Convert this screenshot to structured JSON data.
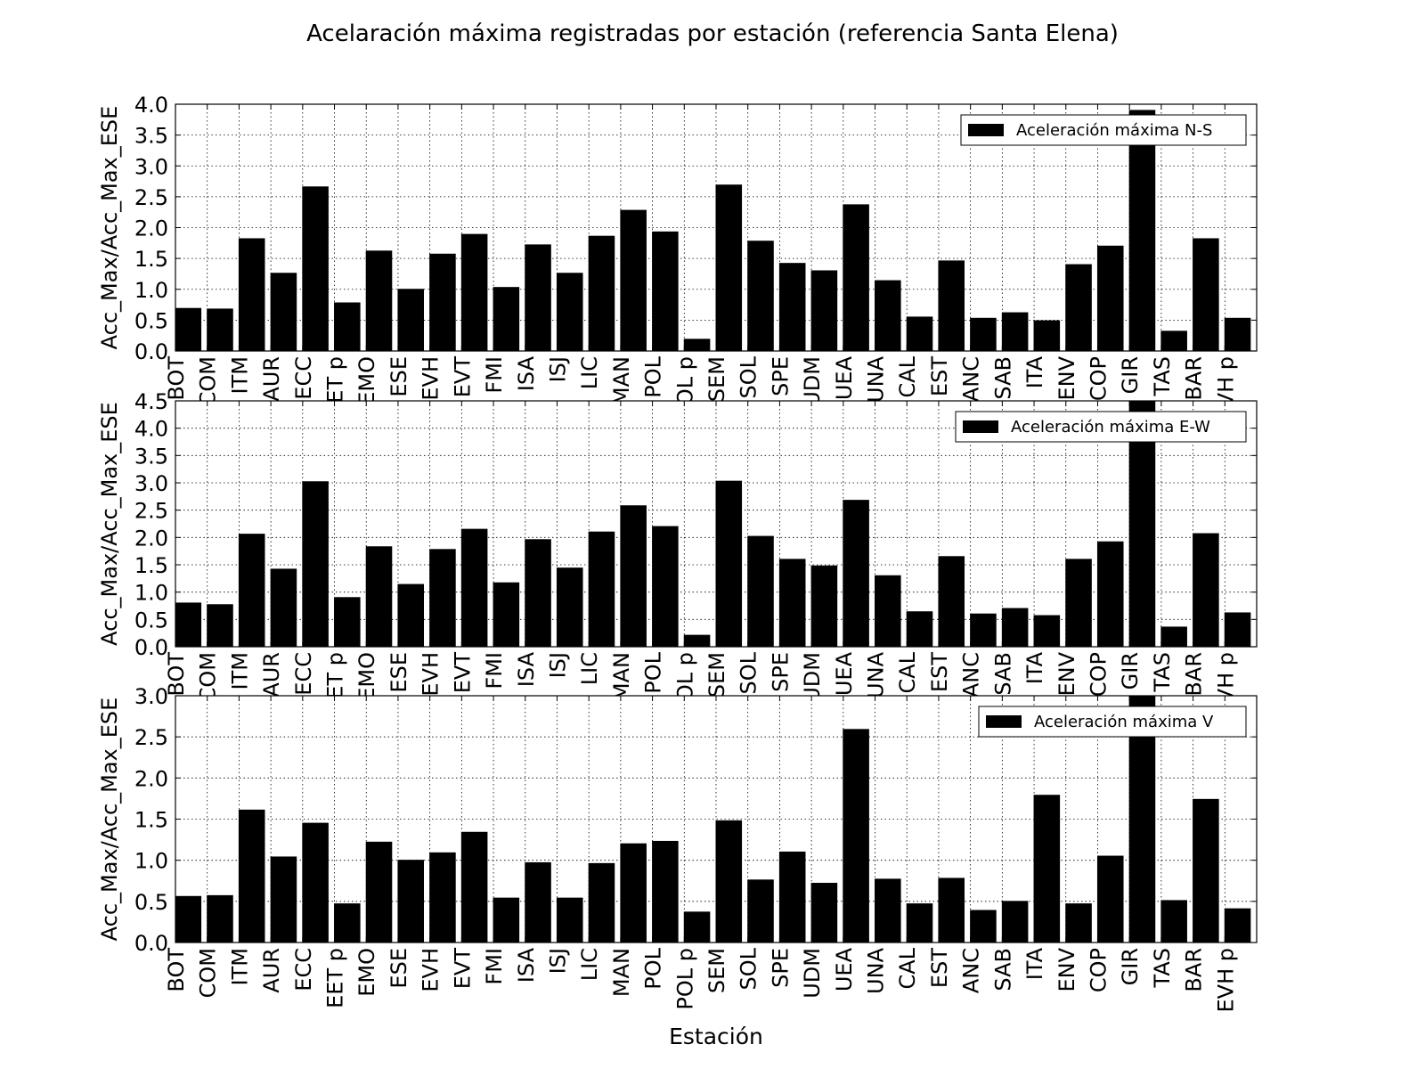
{
  "chart_data": {
    "type": "bar",
    "title": "Acelaración máxima registradas por estación (referencia Santa Elena)",
    "xlabel": "Estación",
    "categories": [
      "BOT",
      "COM",
      "ITM",
      "AUR",
      "ECC",
      "EET p",
      "EMO",
      "ESE",
      "EVH",
      "EVT",
      "FMI",
      "ISA",
      "ISJ",
      "LIC",
      "MAN",
      "POL",
      "POL p",
      "SEM",
      "SOL",
      "SPE",
      "UDM",
      "UEA",
      "UNA",
      "CAL",
      "EST",
      "ANC",
      "SAB",
      "ITA",
      "ENV",
      "COP",
      "GIR",
      "TAS",
      "BAR",
      "EVH p"
    ],
    "grid": true,
    "panels": [
      {
        "ylabel": "Acc_Max/Acc_Max_ESE",
        "legend": "Aceleración máxima N-S",
        "legend_position": "top-right",
        "ylim": [
          0,
          4.0
        ],
        "yticks": [
          "0.0",
          "0.5",
          "1.0",
          "1.5",
          "2.0",
          "2.5",
          "3.0",
          "3.5",
          "4.0"
        ],
        "values": [
          0.69,
          0.68,
          1.82,
          1.26,
          2.66,
          0.78,
          1.62,
          1.0,
          1.57,
          1.89,
          1.03,
          1.72,
          1.26,
          1.86,
          2.28,
          1.93,
          0.19,
          2.69,
          1.78,
          1.42,
          1.3,
          2.37,
          1.14,
          0.55,
          1.46,
          0.53,
          0.62,
          0.49,
          1.4,
          1.7,
          3.9,
          0.32,
          1.82,
          0.53
        ],
        "color": "#000000"
      },
      {
        "ylabel": "Acc_Max/Acc_Max_ESE",
        "legend": "Aceleración máxima E-W",
        "legend_position": "top-right",
        "ylim": [
          0,
          4.5
        ],
        "yticks": [
          "0.0",
          "0.5",
          "1.0",
          "1.5",
          "2.0",
          "2.5",
          "3.0",
          "3.5",
          "4.0",
          "4.5"
        ],
        "values": [
          0.8,
          0.77,
          2.06,
          1.42,
          3.02,
          0.9,
          1.83,
          1.14,
          1.78,
          2.15,
          1.17,
          1.96,
          1.44,
          2.1,
          2.58,
          2.2,
          0.21,
          3.03,
          2.02,
          1.6,
          1.48,
          2.68,
          1.3,
          0.64,
          1.65,
          0.6,
          0.7,
          0.57,
          1.6,
          1.92,
          4.6,
          0.36,
          2.07,
          0.62
        ],
        "color": "#000000"
      },
      {
        "ylabel": "Acc_Max/Acc_Max_ESE",
        "legend": "Aceleración máxima V",
        "legend_position": "top-right",
        "ylim": [
          0,
          3.0
        ],
        "yticks": [
          "0.0",
          "0.5",
          "1.0",
          "1.5",
          "2.0",
          "2.5",
          "3.0"
        ],
        "values": [
          0.56,
          0.57,
          1.61,
          1.04,
          1.45,
          0.47,
          1.22,
          1.0,
          1.09,
          1.34,
          0.54,
          0.97,
          0.54,
          0.96,
          1.2,
          1.23,
          0.37,
          1.48,
          0.76,
          1.1,
          0.72,
          2.59,
          0.77,
          0.47,
          0.78,
          0.39,
          0.5,
          1.79,
          0.47,
          1.05,
          3.0,
          0.51,
          1.74,
          0.41
        ],
        "color": "#000000"
      }
    ]
  }
}
